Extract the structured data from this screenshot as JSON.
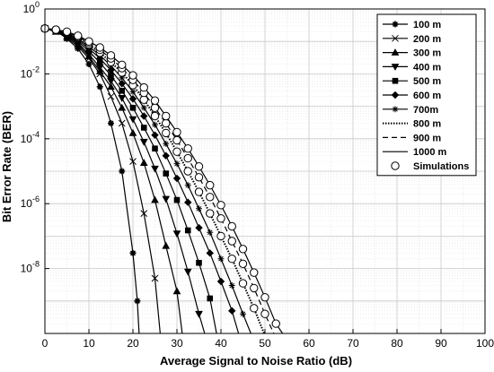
{
  "chart_data": {
    "type": "line",
    "xlabel": "Average Signal to Noise Ratio (dB)",
    "ylabel": "Bit Error Rate (BER)",
    "xlim": [
      0,
      100
    ],
    "ylim": [
      1e-10,
      1
    ],
    "y_scale": "log",
    "grid": true,
    "legend_position": "top-right",
    "x_ticks": [
      "0",
      "10",
      "20",
      "30",
      "40",
      "50",
      "60",
      "70",
      "80",
      "90",
      "100"
    ],
    "y_ticks": [
      {
        "base": "10",
        "exp": "0",
        "value": 1
      },
      {
        "base": "10",
        "exp": "-2",
        "value": 0.01
      },
      {
        "base": "10",
        "exp": "-4",
        "value": 0.0001
      },
      {
        "base": "10",
        "exp": "-6",
        "value": 1e-06
      },
      {
        "base": "10",
        "exp": "-8",
        "value": 1e-08
      }
    ],
    "series": [
      {
        "name": "100 m",
        "line": "solid",
        "marker": "asterisk",
        "points": [
          [
            0,
            0.25
          ],
          [
            2.5,
            0.22
          ],
          [
            5,
            0.12
          ],
          [
            7.5,
            0.06
          ],
          [
            10,
            0.02
          ],
          [
            12.5,
            0.004
          ],
          [
            15,
            0.0003
          ],
          [
            17.5,
            1e-05
          ],
          [
            20,
            3e-08
          ],
          [
            21,
            1e-09
          ],
          [
            21.4,
            1e-10
          ]
        ]
      },
      {
        "name": "200 m",
        "line": "solid",
        "marker": "x",
        "points": [
          [
            0,
            0.25
          ],
          [
            2.5,
            0.2
          ],
          [
            5,
            0.13
          ],
          [
            7.5,
            0.07
          ],
          [
            10,
            0.03
          ],
          [
            12.5,
            0.01
          ],
          [
            15,
            0.002
          ],
          [
            17.5,
            0.0003
          ],
          [
            20,
            2e-05
          ],
          [
            22.5,
            5e-07
          ],
          [
            25,
            5e-09
          ],
          [
            26.2,
            1e-10
          ]
        ]
      },
      {
        "name": "300 m",
        "line": "solid",
        "marker": "triangle-up",
        "points": [
          [
            0,
            0.25
          ],
          [
            2.5,
            0.2
          ],
          [
            5,
            0.14
          ],
          [
            7.5,
            0.08
          ],
          [
            10,
            0.035
          ],
          [
            12.5,
            0.012
          ],
          [
            15,
            0.004
          ],
          [
            17.5,
            0.0009
          ],
          [
            20,
            0.00015
          ],
          [
            22.5,
            1.8e-05
          ],
          [
            25,
            1.3e-06
          ],
          [
            27.5,
            5e-08
          ],
          [
            30,
            2e-09
          ],
          [
            31.2,
            1e-10
          ]
        ]
      },
      {
        "name": "400 m",
        "line": "solid",
        "marker": "triangle-down",
        "points": [
          [
            0,
            0.25
          ],
          [
            2.5,
            0.21
          ],
          [
            5,
            0.15
          ],
          [
            7.5,
            0.09
          ],
          [
            10,
            0.04
          ],
          [
            12.5,
            0.016
          ],
          [
            15,
            0.006
          ],
          [
            17.5,
            0.0018
          ],
          [
            20,
            0.0004
          ],
          [
            22.5,
            8e-05
          ],
          [
            25,
            1.2e-05
          ],
          [
            27.5,
            1.4e-06
          ],
          [
            30,
            1.2e-07
          ],
          [
            32.5,
            8e-09
          ],
          [
            35,
            4e-10
          ],
          [
            36.3,
            1e-10
          ]
        ]
      },
      {
        "name": "500 m",
        "line": "solid",
        "marker": "square",
        "points": [
          [
            0,
            0.25
          ],
          [
            2.5,
            0.21
          ],
          [
            5,
            0.16
          ],
          [
            7.5,
            0.1
          ],
          [
            10,
            0.05
          ],
          [
            12.5,
            0.022
          ],
          [
            15,
            0.009
          ],
          [
            17.5,
            0.003
          ],
          [
            20,
            0.0009
          ],
          [
            22.5,
            0.00022
          ],
          [
            25,
            5e-05
          ],
          [
            27.5,
            8.5e-06
          ],
          [
            30,
            1.3e-06
          ],
          [
            32.5,
            1.5e-07
          ],
          [
            35,
            1.5e-08
          ],
          [
            37.5,
            1.2e-09
          ],
          [
            39,
            1e-10
          ]
        ]
      },
      {
        "name": "600 m",
        "line": "solid",
        "marker": "diamond",
        "points": [
          [
            0,
            0.25
          ],
          [
            2.5,
            0.22
          ],
          [
            5,
            0.17
          ],
          [
            7.5,
            0.11
          ],
          [
            10,
            0.06
          ],
          [
            12.5,
            0.03
          ],
          [
            15,
            0.013
          ],
          [
            17.5,
            0.005
          ],
          [
            20,
            0.0017
          ],
          [
            22.5,
            0.0005
          ],
          [
            25,
            0.00013
          ],
          [
            27.5,
            3e-05
          ],
          [
            30,
            6e-06
          ],
          [
            32.5,
            1.1e-06
          ],
          [
            35,
            1.8e-07
          ],
          [
            37.5,
            3e-08
          ],
          [
            40,
            4e-09
          ],
          [
            42.5,
            5e-10
          ],
          [
            44,
            1e-10
          ]
        ]
      },
      {
        "name": "700m",
        "line": "solid",
        "marker": "star",
        "points": [
          [
            0,
            0.25
          ],
          [
            2.5,
            0.22
          ],
          [
            5,
            0.18
          ],
          [
            7.5,
            0.12
          ],
          [
            10,
            0.07
          ],
          [
            12.5,
            0.037
          ],
          [
            15,
            0.018
          ],
          [
            17.5,
            0.0075
          ],
          [
            20,
            0.0028
          ],
          [
            22.5,
            0.0009
          ],
          [
            25,
            0.00027
          ],
          [
            27.5,
            7e-05
          ],
          [
            30,
            1.7e-05
          ],
          [
            32.5,
            3.7e-06
          ],
          [
            35,
            7e-07
          ],
          [
            37.5,
            1.3e-07
          ],
          [
            40,
            2e-08
          ],
          [
            42.5,
            3e-09
          ],
          [
            45,
            4e-10
          ],
          [
            46.8,
            1e-10
          ]
        ]
      },
      {
        "name": "800 m",
        "line": "dotted",
        "marker": "none",
        "points": [
          [
            0,
            0.25
          ],
          [
            2.5,
            0.22
          ],
          [
            5,
            0.18
          ],
          [
            7.5,
            0.13
          ],
          [
            10,
            0.08
          ],
          [
            12.5,
            0.045
          ],
          [
            15,
            0.023
          ],
          [
            17.5,
            0.011
          ],
          [
            20,
            0.0045
          ],
          [
            22.5,
            0.0016
          ],
          [
            25,
            0.0005
          ],
          [
            27.5,
            0.00015
          ],
          [
            30,
            4e-05
          ],
          [
            32.5,
            1e-05
          ],
          [
            35,
            2.3e-06
          ],
          [
            37.5,
            5e-07
          ],
          [
            40,
            1e-07
          ],
          [
            42.5,
            2e-08
          ],
          [
            45,
            3.5e-09
          ],
          [
            47.5,
            6e-10
          ],
          [
            49.8,
            1e-10
          ]
        ]
      },
      {
        "name": "900 m",
        "line": "dashed",
        "marker": "none",
        "points": [
          [
            0,
            0.25
          ],
          [
            2.5,
            0.23
          ],
          [
            5,
            0.19
          ],
          [
            7.5,
            0.14
          ],
          [
            10,
            0.09
          ],
          [
            12.5,
            0.055
          ],
          [
            15,
            0.03
          ],
          [
            17.5,
            0.015
          ],
          [
            20,
            0.0065
          ],
          [
            22.5,
            0.0026
          ],
          [
            25,
            0.0009
          ],
          [
            27.5,
            0.0003
          ],
          [
            30,
            9e-05
          ],
          [
            32.5,
            2.5e-05
          ],
          [
            35,
            6.5e-06
          ],
          [
            37.5,
            1.6e-06
          ],
          [
            40,
            3.5e-07
          ],
          [
            42.5,
            7e-08
          ],
          [
            45,
            1.4e-08
          ],
          [
            47.5,
            2.5e-09
          ],
          [
            50,
            4e-10
          ],
          [
            52,
            1e-10
          ]
        ]
      },
      {
        "name": "1000 m",
        "line": "solid",
        "marker": "none",
        "points": [
          [
            0,
            0.25
          ],
          [
            2.5,
            0.23
          ],
          [
            5,
            0.2
          ],
          [
            7.5,
            0.15
          ],
          [
            10,
            0.1
          ],
          [
            12.5,
            0.065
          ],
          [
            15,
            0.037
          ],
          [
            17.5,
            0.019
          ],
          [
            20,
            0.009
          ],
          [
            22.5,
            0.0038
          ],
          [
            25,
            0.0015
          ],
          [
            27.5,
            0.0005
          ],
          [
            30,
            0.00016
          ],
          [
            32.5,
            5e-05
          ],
          [
            35,
            1.4e-05
          ],
          [
            37.5,
            3.7e-06
          ],
          [
            40,
            9e-07
          ],
          [
            42.5,
            2e-07
          ],
          [
            45,
            4e-08
          ],
          [
            47.5,
            7.5e-09
          ],
          [
            50,
            1.3e-09
          ],
          [
            52.5,
            2e-10
          ],
          [
            54,
            1e-10
          ]
        ]
      },
      {
        "name": "Simulations",
        "line": "none",
        "marker": "circle",
        "points": []
      }
    ]
  }
}
